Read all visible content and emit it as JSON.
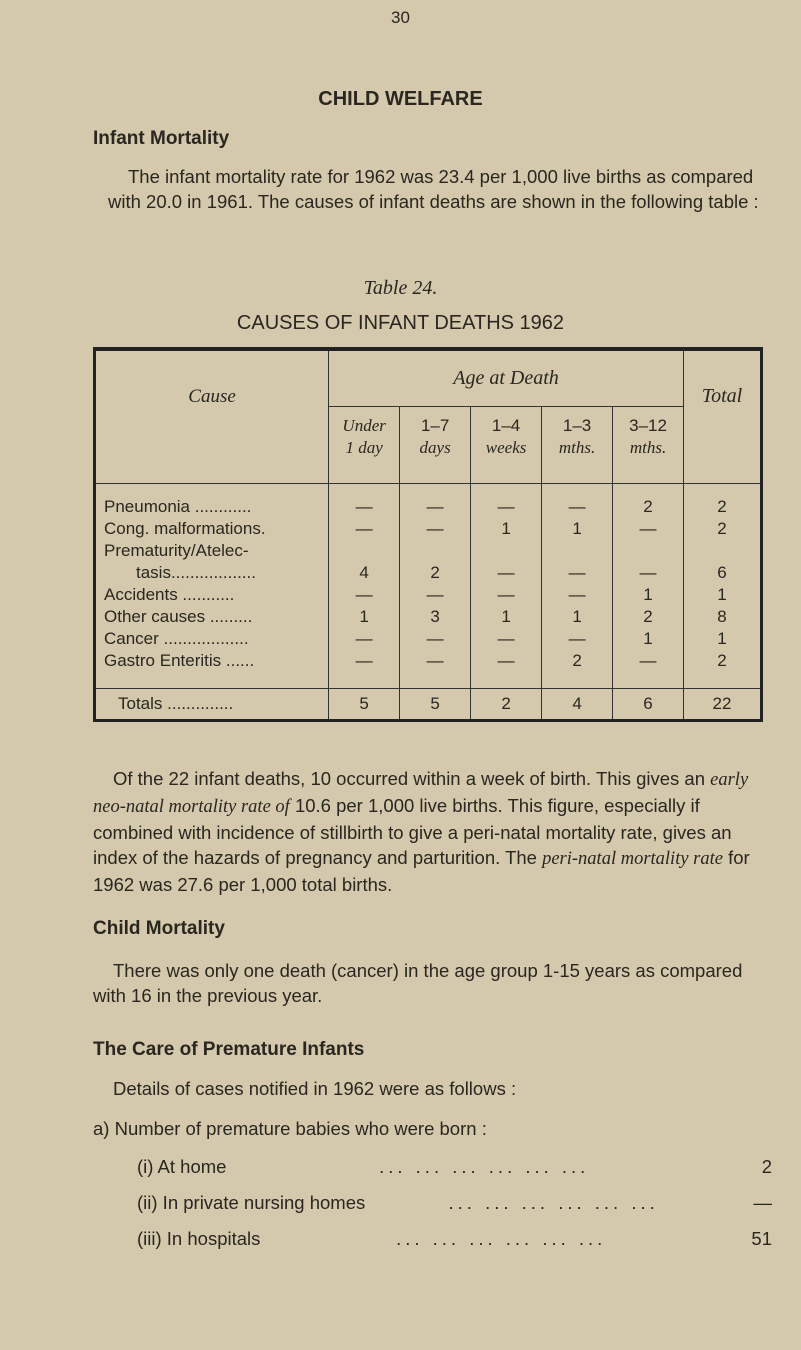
{
  "page_number": "30",
  "section_title": "CHILD WELFARE",
  "infant_mortality": {
    "heading": "Infant Mortality",
    "paragraph": "The infant mortality rate for 1962 was 23.4 per 1,000 live births as compared with 20.0 in 1961. The causes of infant deaths are shown in the following table :"
  },
  "table": {
    "label": "Table 24.",
    "title": "CAUSES OF INFANT DEATHS 1962",
    "cause_header": "Cause",
    "age_header": "Age at Death",
    "total_header": "Total",
    "age_columns": [
      {
        "line1": "Under",
        "line2": "1 day"
      },
      {
        "line1": "1–7",
        "line2": "days"
      },
      {
        "line1": "1–4",
        "line2": "weeks"
      },
      {
        "line1": "1–3",
        "line2": "mths."
      },
      {
        "line1": "3–12",
        "line2": "mths."
      }
    ],
    "rows": [
      {
        "cause": "Pneumonia ............",
        "values": [
          "—",
          "—",
          "—",
          "—",
          "2"
        ],
        "total": "2"
      },
      {
        "cause": "Cong. malformations.",
        "values": [
          "—",
          "—",
          "1",
          "1",
          "—"
        ],
        "total": "2"
      },
      {
        "cause": "Prematurity/Atelec-",
        "cause_cont": "tasis..................",
        "values": [
          "4",
          "2",
          "—",
          "—",
          "—"
        ],
        "total": "6"
      },
      {
        "cause": "Accidents  ...........",
        "values": [
          "—",
          "—",
          "—",
          "—",
          "1"
        ],
        "total": "1"
      },
      {
        "cause": "Other causes  .........",
        "values": [
          "1",
          "3",
          "1",
          "1",
          "2"
        ],
        "total": "8"
      },
      {
        "cause": "Cancer ..................",
        "values": [
          "—",
          "—",
          "—",
          "—",
          "1"
        ],
        "total": "1"
      },
      {
        "cause": "Gastro Enteritis ......",
        "values": [
          "—",
          "—",
          "—",
          "2",
          "—"
        ],
        "total": "2"
      }
    ],
    "totals": {
      "label": "Totals  ..............",
      "values": [
        "5",
        "5",
        "2",
        "4",
        "6"
      ],
      "total": "22"
    }
  },
  "neonatal_paragraph": {
    "p1": "Of the 22 infant deaths, 10 occurred within a week of birth. This gives an ",
    "em1": "early neo-natal mortality rate of",
    "p2": " 10.6 per 1,000 live births. This figure, especially if combined with incidence of stillbirth to give a peri-natal mortality rate, gives an index of the hazards of pregnancy and parturition. The ",
    "em2": "peri-natal mortality rate",
    "p3": " for 1962 was 27.6 per 1,000 total births."
  },
  "child_mortality": {
    "heading": "Child Mortality",
    "paragraph": "There was only one death (cancer) in the age group 1-15 years as compared with 16 in the previous year."
  },
  "premature": {
    "heading": "The Care of Premature Infants",
    "intro": "Details of cases notified in 1962 were as follows :",
    "item_a": "a)  Number of premature babies who were born :",
    "dots": "... ... ... ... ... ...",
    "items": [
      {
        "label": "(i)  At home",
        "value": "2"
      },
      {
        "label": "(ii)  In private nursing homes",
        "value": "—"
      },
      {
        "label": "(iii)  In hospitals",
        "value": "51"
      }
    ]
  }
}
